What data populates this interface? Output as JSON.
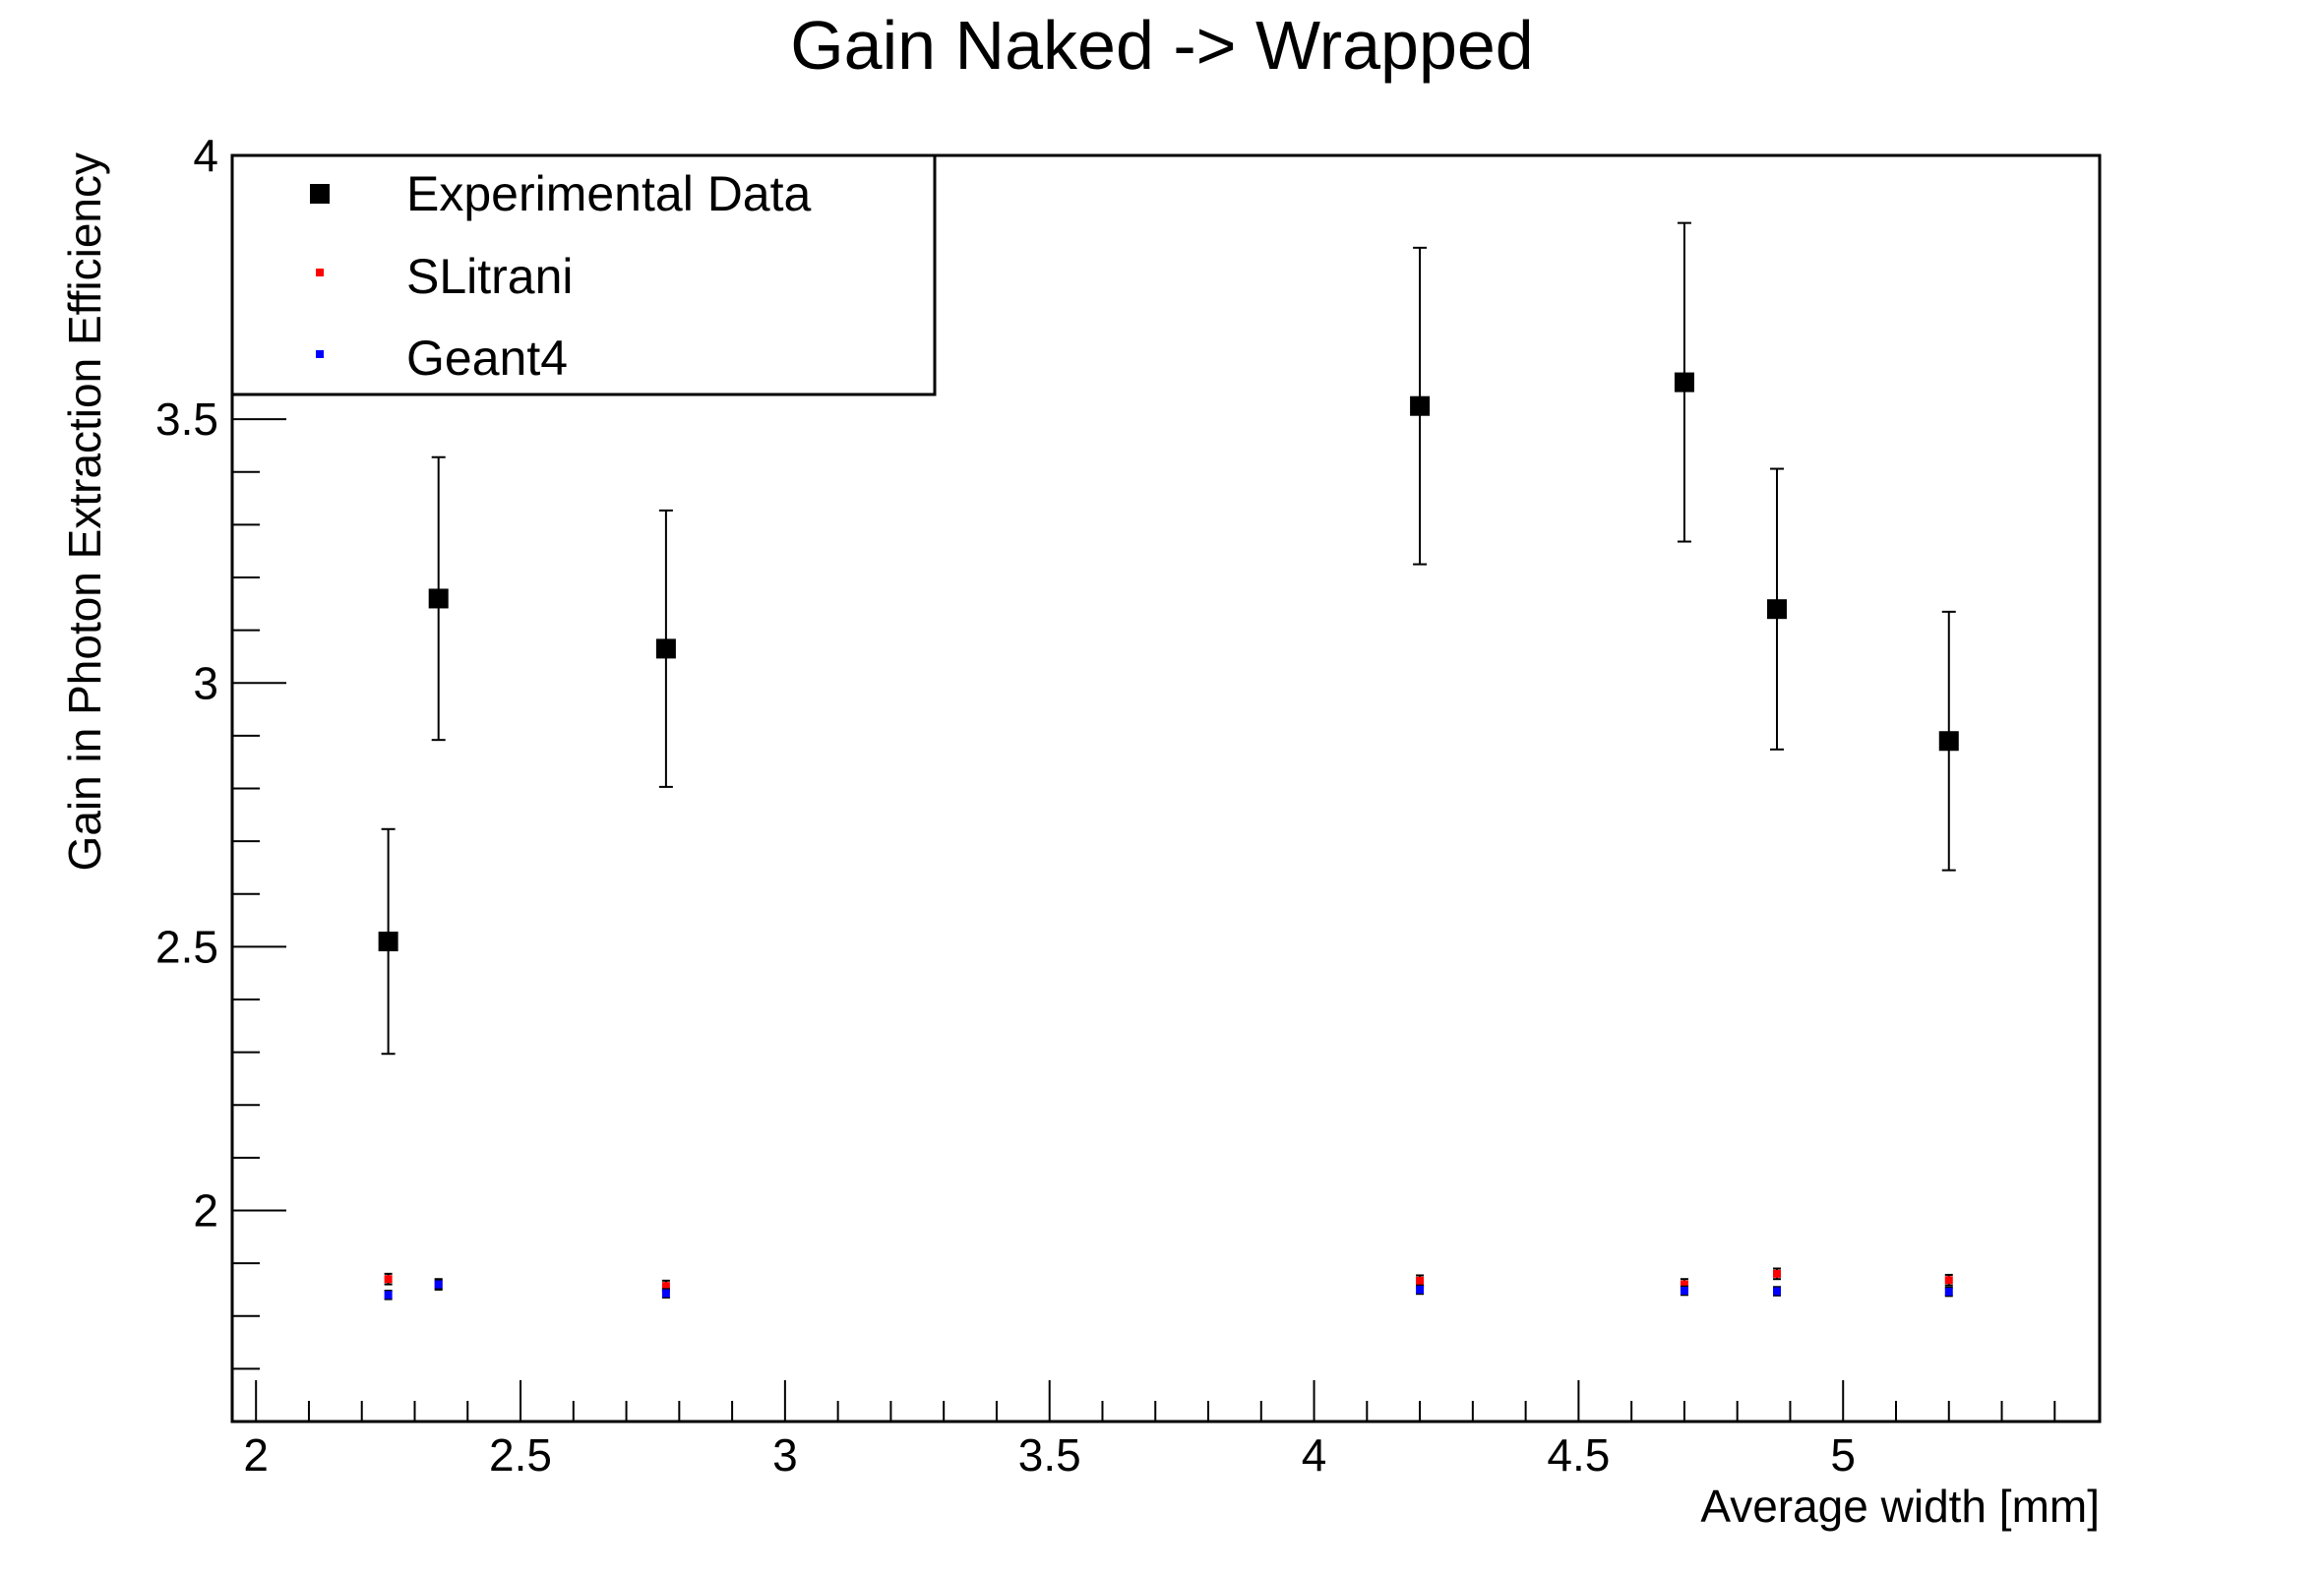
{
  "chart_data": {
    "type": "scatter",
    "title": "Gain Naked -> Wrapped",
    "xlabel": "Average width [mm]",
    "ylabel": "Gain in Photon Extraction Efficiency",
    "xlim": [
      1.955,
      5.485
    ],
    "ylim": [
      1.6,
      4.0
    ],
    "x_ticks": [
      "2",
      "2.5",
      "3",
      "3.5",
      "4",
      "4.5",
      "5"
    ],
    "y_ticks": [
      "2",
      "2.5",
      "3",
      "3.5",
      "4"
    ],
    "legend_position": "top-left",
    "grid": false,
    "series": [
      {
        "name": "Experimental Data",
        "color": "#000000",
        "marker": "large-square",
        "points": [
          {
            "x": 2.25,
            "y": 2.51,
            "err": 0.213
          },
          {
            "x": 2.345,
            "y": 3.16,
            "err": 0.268
          },
          {
            "x": 2.775,
            "y": 3.065,
            "err": 0.262
          },
          {
            "x": 4.2,
            "y": 3.525,
            "err": 0.3
          },
          {
            "x": 4.7,
            "y": 3.57,
            "err": 0.302
          },
          {
            "x": 4.875,
            "y": 3.14,
            "err": 0.266
          },
          {
            "x": 5.2,
            "y": 2.89,
            "err": 0.245
          }
        ]
      },
      {
        "name": "SLitrani",
        "color": "#ff0000",
        "marker": "small-square",
        "points": [
          {
            "x": 2.25,
            "y": 1.87,
            "err": 0.01
          },
          {
            "x": 2.345,
            "y": 1.86,
            "err": 0.01
          },
          {
            "x": 2.775,
            "y": 1.857,
            "err": 0.01
          },
          {
            "x": 4.2,
            "y": 1.867,
            "err": 0.01
          },
          {
            "x": 4.7,
            "y": 1.86,
            "err": 0.01
          },
          {
            "x": 4.875,
            "y": 1.88,
            "err": 0.01
          },
          {
            "x": 5.2,
            "y": 1.868,
            "err": 0.01
          }
        ]
      },
      {
        "name": "Geant4",
        "color": "#0000ff",
        "marker": "small-square",
        "points": [
          {
            "x": 2.25,
            "y": 1.84,
            "err": 0.008
          },
          {
            "x": 2.345,
            "y": 1.86,
            "err": 0.008
          },
          {
            "x": 2.775,
            "y": 1.843,
            "err": 0.008
          },
          {
            "x": 4.2,
            "y": 1.85,
            "err": 0.008
          },
          {
            "x": 4.7,
            "y": 1.848,
            "err": 0.008
          },
          {
            "x": 4.875,
            "y": 1.847,
            "err": 0.008
          },
          {
            "x": 5.2,
            "y": 1.846,
            "err": 0.008
          }
        ]
      }
    ]
  }
}
